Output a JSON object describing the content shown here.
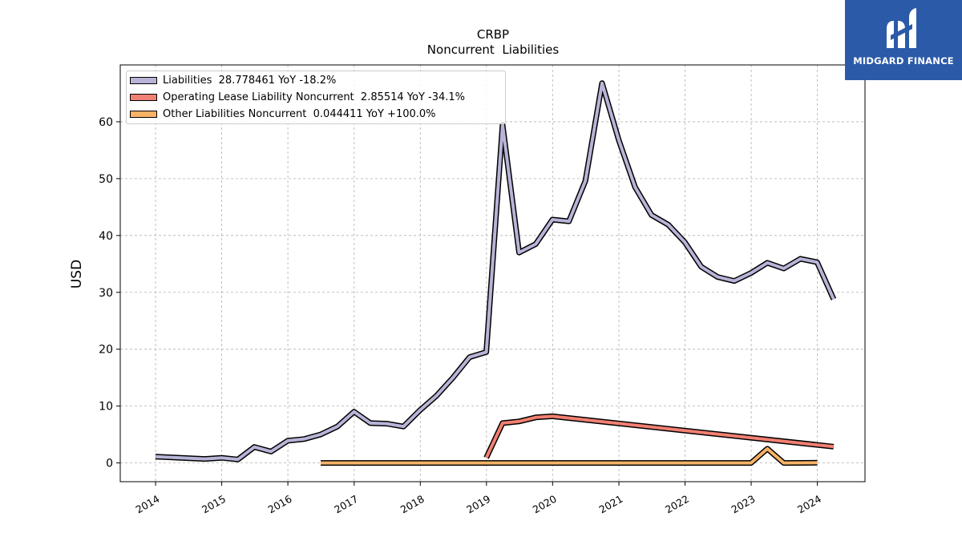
{
  "brand": {
    "name": "MIDGARD FINANCE",
    "color": "#2b5aa8"
  },
  "chart_data": {
    "type": "line",
    "title": "CRBP",
    "subtitle": "Noncurrent  Liabilities",
    "xlabel": "",
    "ylabel": "USD",
    "ylim": [
      -3.3,
      70
    ],
    "xlim": [
      "2013-06-20",
      "2024-09-20"
    ],
    "yticks": [
      0,
      10,
      20,
      30,
      40,
      50,
      60
    ],
    "xticks": [
      "2014",
      "2015",
      "2016",
      "2017",
      "2018",
      "2019",
      "2020",
      "2021",
      "2022",
      "2023",
      "2024"
    ],
    "grid": true,
    "legend_position": "top-left",
    "series": [
      {
        "name": "Liabilities",
        "legend": "Liabilities  28.778461 YoY -18.2%",
        "color": "#b7b4d8",
        "points": [
          [
            "2013-12-31",
            1.1
          ],
          [
            "2014-09-30",
            0.7
          ],
          [
            "2014-12-31",
            0.9
          ],
          [
            "2015-03-31",
            0.6
          ],
          [
            "2015-06-30",
            2.8
          ],
          [
            "2015-09-30",
            2.0
          ],
          [
            "2015-12-31",
            3.9
          ],
          [
            "2016-03-31",
            4.2
          ],
          [
            "2016-06-30",
            5.0
          ],
          [
            "2016-09-30",
            6.4
          ],
          [
            "2016-12-31",
            9.0
          ],
          [
            "2017-03-31",
            7.0
          ],
          [
            "2017-06-30",
            6.9
          ],
          [
            "2017-09-30",
            6.4
          ],
          [
            "2017-12-31",
            9.3
          ],
          [
            "2018-03-31",
            11.8
          ],
          [
            "2018-06-30",
            15.0
          ],
          [
            "2018-09-30",
            18.6
          ],
          [
            "2018-12-31",
            19.5
          ],
          [
            "2019-03-31",
            59.5
          ],
          [
            "2019-06-30",
            37.0
          ],
          [
            "2019-09-30",
            38.5
          ],
          [
            "2019-12-31",
            42.8
          ],
          [
            "2020-03-31",
            42.5
          ],
          [
            "2020-06-30",
            49.6
          ],
          [
            "2020-09-30",
            66.8
          ],
          [
            "2020-12-31",
            56.8
          ],
          [
            "2021-03-31",
            48.5
          ],
          [
            "2021-06-30",
            43.6
          ],
          [
            "2021-09-30",
            41.9
          ],
          [
            "2021-12-31",
            38.8
          ],
          [
            "2022-03-31",
            34.5
          ],
          [
            "2022-06-30",
            32.7
          ],
          [
            "2022-09-30",
            32.0
          ],
          [
            "2022-12-31",
            33.4
          ],
          [
            "2023-03-31",
            35.2
          ],
          [
            "2023-06-30",
            34.2
          ],
          [
            "2023-09-30",
            35.9
          ],
          [
            "2023-12-31",
            35.3
          ],
          [
            "2024-03-31",
            28.8
          ]
        ]
      },
      {
        "name": "Operating Lease Liability Noncurrent",
        "legend": "Operating Lease Liability Noncurrent  2.85514 YoY -34.1%",
        "color": "#f28072",
        "points": [
          [
            "2018-12-31",
            0.9
          ],
          [
            "2019-03-31",
            7.0
          ],
          [
            "2019-06-30",
            7.3
          ],
          [
            "2019-09-30",
            8.0
          ],
          [
            "2019-12-31",
            8.2
          ],
          [
            "2024-03-31",
            2.86
          ]
        ]
      },
      {
        "name": "Other Liabilities Noncurrent",
        "legend": "Other Liabilities Noncurrent  0.044411 YoY +100.0%",
        "color": "#f7b266",
        "points": [
          [
            "2016-06-30",
            0.0
          ],
          [
            "2022-12-31",
            0.0
          ],
          [
            "2023-03-31",
            2.5
          ],
          [
            "2023-06-30",
            0.0
          ],
          [
            "2023-12-31",
            0.04
          ]
        ]
      }
    ]
  }
}
